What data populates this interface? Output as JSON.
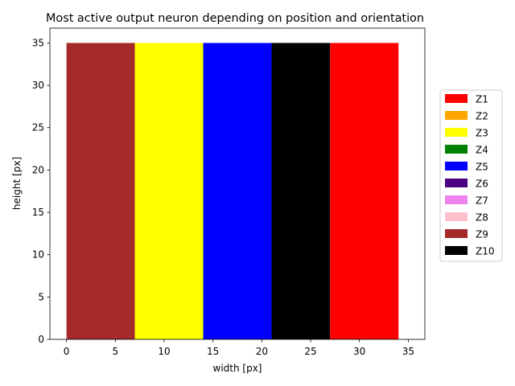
{
  "chart_data": {
    "type": "bar",
    "title": "Most active output neuron depending on position and orientation",
    "xlabel": "width [px]",
    "ylabel": "height [px]",
    "xlim": [
      -1.7,
      36.7
    ],
    "ylim": [
      0,
      36.75
    ],
    "xticks": [
      0,
      5,
      10,
      15,
      20,
      25,
      30,
      35
    ],
    "yticks": [
      0,
      5,
      10,
      15,
      20,
      25,
      30,
      35
    ],
    "legend_position": "right",
    "grid": false,
    "regions": [
      {
        "label": "Z9",
        "x_start": 0,
        "x_end": 7,
        "height": 35,
        "color": "#a52a2a"
      },
      {
        "label": "Z3",
        "x_start": 7,
        "x_end": 14,
        "height": 35,
        "color": "#ffff00"
      },
      {
        "label": "Z5",
        "x_start": 14,
        "x_end": 21,
        "height": 35,
        "color": "#0000ff"
      },
      {
        "label": "Z10",
        "x_start": 21,
        "x_end": 27,
        "height": 35,
        "color": "#000000"
      },
      {
        "label": "Z1",
        "x_start": 27,
        "x_end": 34,
        "height": 35,
        "color": "#ff0000"
      }
    ],
    "legend": [
      {
        "label": "Z1",
        "color": "#ff0000"
      },
      {
        "label": "Z2",
        "color": "#ffa500"
      },
      {
        "label": "Z3",
        "color": "#ffff00"
      },
      {
        "label": "Z4",
        "color": "#008000"
      },
      {
        "label": "Z5",
        "color": "#0000ff"
      },
      {
        "label": "Z6",
        "color": "#4b0082"
      },
      {
        "label": "Z7",
        "color": "#ee82ee"
      },
      {
        "label": "Z8",
        "color": "#ffc0cb"
      },
      {
        "label": "Z9",
        "color": "#a52a2a"
      },
      {
        "label": "Z10",
        "color": "#000000"
      }
    ]
  }
}
